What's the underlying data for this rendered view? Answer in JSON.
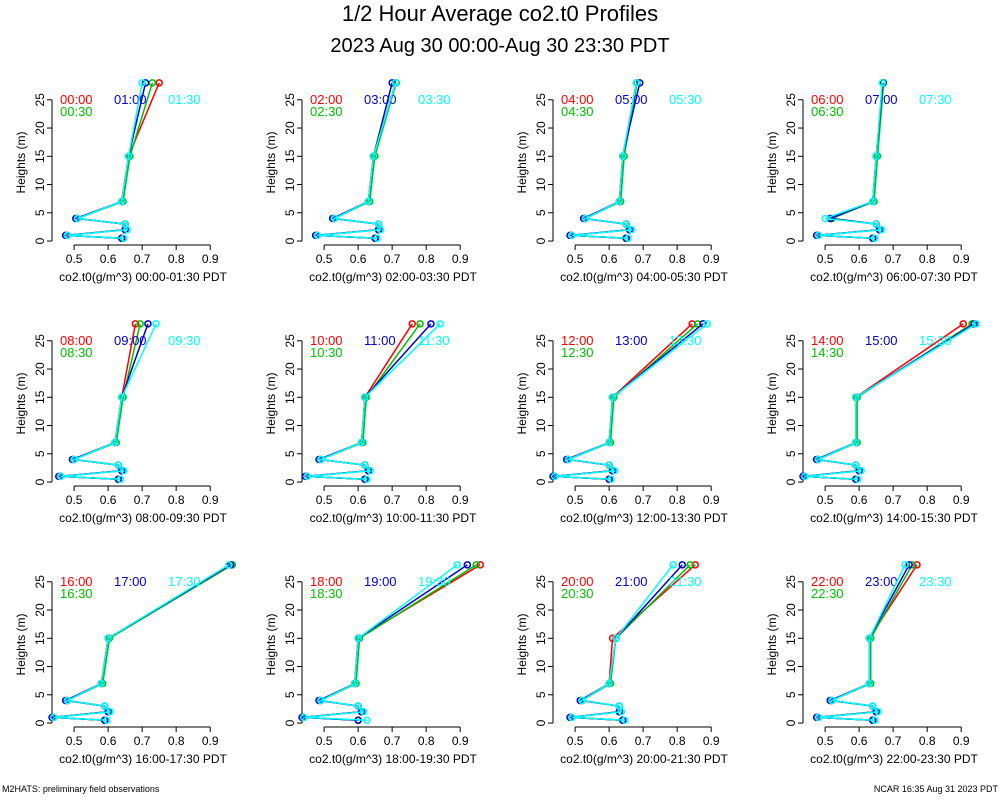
{
  "title": "1/2 Hour Average co2.t0 Profiles",
  "subtitle": "2023 Aug 30 00:00-Aug 30 23:30 PDT",
  "footer_left": "M2HATS: preliminary field observations",
  "footer_right": "NCAR 16:35 Aug 31 2023 PDT",
  "chart_data": [
    {
      "type": "line",
      "xlabel": "co2.t0(g/m^3) 00:00-01:30 PDT",
      "ylabel": "Heights (m)",
      "xlim": [
        0.435,
        0.97
      ],
      "ylim": [
        -0.7,
        28.5
      ],
      "xticks": [
        0.5,
        0.6,
        0.7,
        0.8,
        0.9
      ],
      "yticks": [
        0,
        5,
        10,
        15,
        20,
        25
      ],
      "y": [
        0.5,
        1,
        2,
        3,
        4,
        7,
        15,
        28
      ],
      "series": [
        {
          "name": "00:00",
          "color": "#ff0000",
          "values": [
            0.64,
            0.48,
            0.65,
            0.65,
            0.51,
            0.64,
            0.66,
            0.75
          ]
        },
        {
          "name": "00:30",
          "color": "#00c000",
          "values": [
            0.64,
            0.48,
            0.65,
            0.65,
            0.51,
            0.644,
            0.664,
            0.73
          ]
        },
        {
          "name": "01:00",
          "color": "#0000d0",
          "values": [
            0.64,
            0.475,
            0.65,
            0.65,
            0.505,
            0.64,
            0.66,
            0.71
          ]
        },
        {
          "name": "01:30",
          "color": "#00ffff",
          "values": [
            0.646,
            0.48,
            0.656,
            0.65,
            0.51,
            0.64,
            0.66,
            0.7
          ]
        }
      ]
    },
    {
      "type": "line",
      "xlabel": "co2.t0(g/m^3) 02:00-03:30 PDT",
      "ylabel": "Heights (m)",
      "xlim": [
        0.435,
        0.97
      ],
      "ylim": [
        -0.7,
        28.5
      ],
      "xticks": [
        0.5,
        0.6,
        0.7,
        0.8,
        0.9
      ],
      "yticks": [
        0,
        5,
        10,
        15,
        20,
        25
      ],
      "y": [
        0.5,
        1,
        2,
        3,
        4,
        7,
        15,
        28
      ],
      "series": [
        {
          "name": "02:00",
          "color": "#ff0000",
          "values": [
            0.65,
            0.48,
            0.66,
            0.66,
            0.53,
            0.63,
            0.645,
            0.71
          ]
        },
        {
          "name": "02:30",
          "color": "#00c000",
          "values": [
            0.65,
            0.48,
            0.66,
            0.66,
            0.53,
            0.634,
            0.649,
            0.712
          ]
        },
        {
          "name": "03:00",
          "color": "#0000d0",
          "values": [
            0.65,
            0.475,
            0.66,
            0.66,
            0.525,
            0.63,
            0.645,
            0.7
          ]
        },
        {
          "name": "03:30",
          "color": "#00ffff",
          "values": [
            0.656,
            0.48,
            0.666,
            0.66,
            0.53,
            0.63,
            0.645,
            0.71
          ]
        }
      ]
    },
    {
      "type": "line",
      "xlabel": "co2.t0(g/m^3) 04:00-05:30 PDT",
      "ylabel": "Heights (m)",
      "xlim": [
        0.435,
        0.97
      ],
      "ylim": [
        -0.7,
        28.5
      ],
      "xticks": [
        0.5,
        0.6,
        0.7,
        0.8,
        0.9
      ],
      "yticks": [
        0,
        5,
        10,
        15,
        20,
        25
      ],
      "y": [
        0.5,
        1,
        2,
        3,
        4,
        7,
        15,
        28
      ],
      "series": [
        {
          "name": "04:00",
          "color": "#ff0000",
          "values": [
            0.65,
            0.49,
            0.66,
            0.65,
            0.53,
            0.63,
            0.64,
            0.68
          ]
        },
        {
          "name": "04:30",
          "color": "#00c000",
          "values": [
            0.65,
            0.49,
            0.66,
            0.65,
            0.53,
            0.634,
            0.644,
            0.682
          ]
        },
        {
          "name": "05:00",
          "color": "#0000d0",
          "values": [
            0.65,
            0.485,
            0.66,
            0.65,
            0.525,
            0.63,
            0.64,
            0.69
          ]
        },
        {
          "name": "05:30",
          "color": "#00ffff",
          "values": [
            0.656,
            0.49,
            0.666,
            0.65,
            0.53,
            0.63,
            0.64,
            0.68
          ]
        }
      ]
    },
    {
      "type": "line",
      "xlabel": "co2.t0(g/m^3) 06:00-07:30 PDT",
      "ylabel": "Heights (m)",
      "xlim": [
        0.435,
        0.97
      ],
      "ylim": [
        -0.7,
        28.5
      ],
      "xticks": [
        0.5,
        0.6,
        0.7,
        0.8,
        0.9
      ],
      "yticks": [
        0,
        5,
        10,
        15,
        20,
        25
      ],
      "y": [
        0.5,
        1,
        2,
        3,
        4,
        7,
        15,
        28
      ],
      "series": [
        {
          "name": "06:00",
          "color": "#ff0000",
          "values": [
            0.64,
            0.48,
            0.66,
            0.65,
            0.52,
            0.64,
            0.65,
            0.67
          ]
        },
        {
          "name": "06:30",
          "color": "#00c000",
          "values": [
            0.64,
            0.48,
            0.66,
            0.65,
            0.52,
            0.644,
            0.654,
            0.672
          ]
        },
        {
          "name": "07:00",
          "color": "#0000d0",
          "values": [
            0.64,
            0.475,
            0.66,
            0.65,
            0.515,
            0.64,
            0.65,
            0.67
          ]
        },
        {
          "name": "07:30",
          "color": "#00ffff",
          "values": [
            0.646,
            0.48,
            0.666,
            0.65,
            0.5,
            0.64,
            0.65,
            0.668
          ]
        }
      ]
    },
    {
      "type": "line",
      "xlabel": "co2.t0(g/m^3) 08:00-09:30 PDT",
      "ylabel": "Heights (m)",
      "xlim": [
        0.435,
        0.97
      ],
      "ylim": [
        -0.7,
        28.5
      ],
      "xticks": [
        0.5,
        0.6,
        0.7,
        0.8,
        0.9
      ],
      "yticks": [
        0,
        5,
        10,
        15,
        20,
        25
      ],
      "y": [
        0.5,
        1,
        2,
        3,
        4,
        7,
        15,
        28
      ],
      "series": [
        {
          "name": "08:00",
          "color": "#ff0000",
          "values": [
            0.63,
            0.46,
            0.64,
            0.63,
            0.5,
            0.62,
            0.64,
            0.68
          ]
        },
        {
          "name": "08:30",
          "color": "#00c000",
          "values": [
            0.63,
            0.46,
            0.64,
            0.63,
            0.5,
            0.624,
            0.644,
            0.694
          ]
        },
        {
          "name": "09:00",
          "color": "#0000d0",
          "values": [
            0.63,
            0.455,
            0.64,
            0.63,
            0.495,
            0.62,
            0.64,
            0.717
          ]
        },
        {
          "name": "09:30",
          "color": "#00ffff",
          "values": [
            0.636,
            0.46,
            0.646,
            0.63,
            0.5,
            0.62,
            0.64,
            0.741
          ]
        }
      ]
    },
    {
      "type": "line",
      "xlabel": "co2.t0(g/m^3) 10:00-11:30 PDT",
      "ylabel": "Heights (m)",
      "xlim": [
        0.435,
        0.97
      ],
      "ylim": [
        -0.7,
        28.5
      ],
      "xticks": [
        0.5,
        0.6,
        0.7,
        0.8,
        0.9
      ],
      "yticks": [
        0,
        5,
        10,
        15,
        20,
        25
      ],
      "y": [
        0.5,
        1,
        2,
        3,
        4,
        7,
        15,
        28
      ],
      "series": [
        {
          "name": "10:00",
          "color": "#ff0000",
          "values": [
            0.62,
            0.45,
            0.63,
            0.62,
            0.49,
            0.61,
            0.62,
            0.759
          ]
        },
        {
          "name": "10:30",
          "color": "#00c000",
          "values": [
            0.62,
            0.45,
            0.63,
            0.62,
            0.49,
            0.614,
            0.624,
            0.782
          ]
        },
        {
          "name": "11:00",
          "color": "#0000d0",
          "values": [
            0.62,
            0.445,
            0.63,
            0.62,
            0.485,
            0.61,
            0.62,
            0.814
          ]
        },
        {
          "name": "11:30",
          "color": "#00ffff",
          "values": [
            0.626,
            0.45,
            0.636,
            0.62,
            0.49,
            0.61,
            0.62,
            0.841
          ]
        }
      ]
    },
    {
      "type": "line",
      "xlabel": "co2.t0(g/m^3) 12:00-13:30 PDT",
      "ylabel": "Heights (m)",
      "xlim": [
        0.435,
        0.97
      ],
      "ylim": [
        -0.7,
        28.5
      ],
      "xticks": [
        0.5,
        0.6,
        0.7,
        0.8,
        0.9
      ],
      "yticks": [
        0,
        5,
        10,
        15,
        20,
        25
      ],
      "y": [
        0.5,
        1,
        2,
        3,
        4,
        7,
        15,
        28
      ],
      "series": [
        {
          "name": "12:00",
          "color": "#ff0000",
          "values": [
            0.6,
            0.44,
            0.61,
            0.6,
            0.48,
            0.6,
            0.61,
            0.844
          ]
        },
        {
          "name": "12:30",
          "color": "#00c000",
          "values": [
            0.6,
            0.44,
            0.61,
            0.6,
            0.48,
            0.604,
            0.614,
            0.86
          ]
        },
        {
          "name": "13:00",
          "color": "#0000d0",
          "values": [
            0.6,
            0.435,
            0.61,
            0.6,
            0.475,
            0.6,
            0.61,
            0.876
          ]
        },
        {
          "name": "13:30",
          "color": "#00ffff",
          "values": [
            0.606,
            0.44,
            0.616,
            0.6,
            0.48,
            0.6,
            0.61,
            0.888
          ]
        }
      ]
    },
    {
      "type": "line",
      "xlabel": "co2.t0(g/m^3) 14:00-15:30 PDT",
      "ylabel": "Heights (m)",
      "xlim": [
        0.435,
        0.97
      ],
      "ylim": [
        -0.7,
        28.5
      ],
      "xticks": [
        0.5,
        0.6,
        0.7,
        0.8,
        0.9
      ],
      "yticks": [
        0,
        5,
        10,
        15,
        20,
        25
      ],
      "y": [
        0.5,
        1,
        2,
        3,
        4,
        7,
        15,
        28
      ],
      "series": [
        {
          "name": "14:00",
          "color": "#ff0000",
          "values": [
            0.59,
            0.44,
            0.6,
            0.59,
            0.48,
            0.59,
            0.59,
            0.906
          ]
        },
        {
          "name": "14:30",
          "color": "#00c000",
          "values": [
            0.59,
            0.44,
            0.6,
            0.59,
            0.48,
            0.594,
            0.594,
            0.932
          ]
        },
        {
          "name": "15:00",
          "color": "#0000d0",
          "values": [
            0.59,
            0.435,
            0.6,
            0.59,
            0.475,
            0.59,
            0.59,
            0.938
          ]
        },
        {
          "name": "15:30",
          "color": "#00ffff",
          "values": [
            0.596,
            0.44,
            0.606,
            0.59,
            0.48,
            0.59,
            0.59,
            0.944
          ]
        }
      ]
    },
    {
      "type": "line",
      "xlabel": "co2.t0(g/m^3) 16:00-17:30 PDT",
      "ylabel": "Heights (m)",
      "xlim": [
        0.435,
        0.97
      ],
      "ylim": [
        -0.7,
        28.5
      ],
      "xticks": [
        0.5,
        0.6,
        0.7,
        0.8,
        0.9
      ],
      "yticks": [
        0,
        5,
        10,
        15,
        20,
        25
      ],
      "y": [
        0.5,
        1,
        2,
        3,
        4,
        7,
        15,
        28
      ],
      "series": [
        {
          "name": "16:00",
          "color": "#ff0000",
          "values": [
            0.59,
            0.44,
            0.6,
            0.59,
            0.48,
            0.58,
            0.6,
            0.96
          ]
        },
        {
          "name": "16:30",
          "color": "#00c000",
          "values": [
            0.59,
            0.44,
            0.6,
            0.59,
            0.48,
            0.584,
            0.604,
            0.965
          ]
        },
        {
          "name": "17:00",
          "color": "#0000d0",
          "values": [
            0.59,
            0.435,
            0.6,
            0.59,
            0.475,
            0.58,
            0.6,
            0.96
          ]
        },
        {
          "name": "17:30",
          "color": "#00ffff",
          "values": [
            0.596,
            0.44,
            0.606,
            0.59,
            0.48,
            0.58,
            0.6,
            0.955
          ]
        }
      ]
    },
    {
      "type": "line",
      "xlabel": "co2.t0(g/m^3) 18:00-19:30 PDT",
      "ylabel": "Heights (m)",
      "xlim": [
        0.435,
        0.97
      ],
      "ylim": [
        -0.7,
        28.5
      ],
      "xticks": [
        0.5,
        0.6,
        0.7,
        0.8,
        0.9
      ],
      "yticks": [
        0,
        5,
        10,
        15,
        20,
        25
      ],
      "y": [
        0.5,
        1,
        2,
        3,
        4,
        7,
        15,
        28
      ],
      "series": [
        {
          "name": "18:00",
          "color": "#ff0000",
          "values": [
            0.6,
            0.44,
            0.61,
            0.6,
            0.49,
            0.59,
            0.6,
            0.959
          ]
        },
        {
          "name": "18:30",
          "color": "#00c000",
          "values": [
            0.6,
            0.44,
            0.61,
            0.6,
            0.49,
            0.594,
            0.604,
            0.947
          ]
        },
        {
          "name": "19:00",
          "color": "#0000d0",
          "values": [
            0.6,
            0.435,
            0.61,
            0.6,
            0.485,
            0.59,
            0.6,
            0.921
          ]
        },
        {
          "name": "19:30",
          "color": "#00ffff",
          "values": [
            0.626,
            0.44,
            0.616,
            0.6,
            0.49,
            0.59,
            0.6,
            0.891
          ]
        }
      ]
    },
    {
      "type": "line",
      "xlabel": "co2.t0(g/m^3) 20:00-21:30 PDT",
      "ylabel": "Heights (m)",
      "xlim": [
        0.435,
        0.97
      ],
      "ylim": [
        -0.7,
        28.5
      ],
      "xticks": [
        0.5,
        0.6,
        0.7,
        0.8,
        0.9
      ],
      "yticks": [
        0,
        5,
        10,
        15,
        20,
        25
      ],
      "y": [
        0.5,
        1,
        2,
        3,
        4,
        7,
        15,
        28
      ],
      "series": [
        {
          "name": "20:00",
          "color": "#ff0000",
          "values": [
            0.64,
            0.49,
            0.63,
            0.63,
            0.52,
            0.6,
            0.61,
            0.853
          ]
        },
        {
          "name": "20:30",
          "color": "#00c000",
          "values": [
            0.64,
            0.49,
            0.63,
            0.63,
            0.52,
            0.604,
            0.62,
            0.838
          ]
        },
        {
          "name": "21:00",
          "color": "#0000d0",
          "values": [
            0.64,
            0.485,
            0.63,
            0.63,
            0.515,
            0.6,
            0.62,
            0.815
          ]
        },
        {
          "name": "21:30",
          "color": "#00ffff",
          "values": [
            0.646,
            0.49,
            0.636,
            0.63,
            0.52,
            0.6,
            0.62,
            0.788
          ]
        }
      ]
    },
    {
      "type": "line",
      "xlabel": "co2.t0(g/m^3) 22:00-23:30 PDT",
      "ylabel": "Heights (m)",
      "xlim": [
        0.435,
        0.97
      ],
      "ylim": [
        -0.7,
        28.5
      ],
      "xticks": [
        0.5,
        0.6,
        0.7,
        0.8,
        0.9
      ],
      "yticks": [
        0,
        5,
        10,
        15,
        20,
        25
      ],
      "y": [
        0.5,
        1,
        2,
        3,
        4,
        7,
        15,
        28
      ],
      "series": [
        {
          "name": "22:00",
          "color": "#ff0000",
          "values": [
            0.64,
            0.48,
            0.65,
            0.64,
            0.52,
            0.63,
            0.63,
            0.77
          ]
        },
        {
          "name": "22:30",
          "color": "#00c000",
          "values": [
            0.64,
            0.48,
            0.65,
            0.64,
            0.52,
            0.634,
            0.634,
            0.756
          ]
        },
        {
          "name": "23:00",
          "color": "#0000d0",
          "values": [
            0.64,
            0.475,
            0.65,
            0.64,
            0.515,
            0.63,
            0.63,
            0.747
          ]
        },
        {
          "name": "23:30",
          "color": "#00ffff",
          "values": [
            0.646,
            0.48,
            0.656,
            0.64,
            0.52,
            0.63,
            0.63,
            0.735
          ]
        }
      ]
    }
  ]
}
